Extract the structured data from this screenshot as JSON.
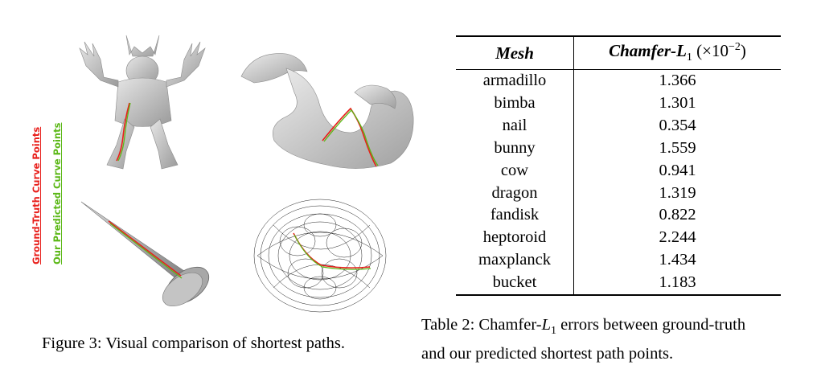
{
  "figure": {
    "legend": {
      "ground_truth": "Ground-Truth Curve Points",
      "predicted": "Our Predicted Curve Points",
      "ground_truth_color": "#e8201c",
      "predicted_color": "#5cb818"
    },
    "caption": "Figure 3: Visual comparison of shortest paths.",
    "meshes": [
      "armadillo",
      "dragon",
      "nail",
      "heptoroid"
    ]
  },
  "table": {
    "header_mesh": "Mesh",
    "header_metric": "Chamfer-",
    "header_metric_sym": "L",
    "header_metric_sub": "1",
    "header_metric_scale": "(×10",
    "header_metric_exp": "−2",
    "header_metric_close": ")",
    "rows": [
      {
        "mesh": "armadillo",
        "value": "1.366"
      },
      {
        "mesh": "bimba",
        "value": "1.301"
      },
      {
        "mesh": "nail",
        "value": "0.354"
      },
      {
        "mesh": "bunny",
        "value": "1.559"
      },
      {
        "mesh": "cow",
        "value": "0.941"
      },
      {
        "mesh": "dragon",
        "value": "1.319"
      },
      {
        "mesh": "fandisk",
        "value": "0.822"
      },
      {
        "mesh": "heptoroid",
        "value": "2.244"
      },
      {
        "mesh": "maxplanck",
        "value": "1.434"
      },
      {
        "mesh": "bucket",
        "value": "1.183"
      }
    ],
    "caption_line1_a": "Table 2: Chamfer-",
    "caption_sym": "L",
    "caption_sub": "1",
    "caption_line1_b": " errors between ground-truth",
    "caption_line2": "and our predicted shortest path points."
  }
}
